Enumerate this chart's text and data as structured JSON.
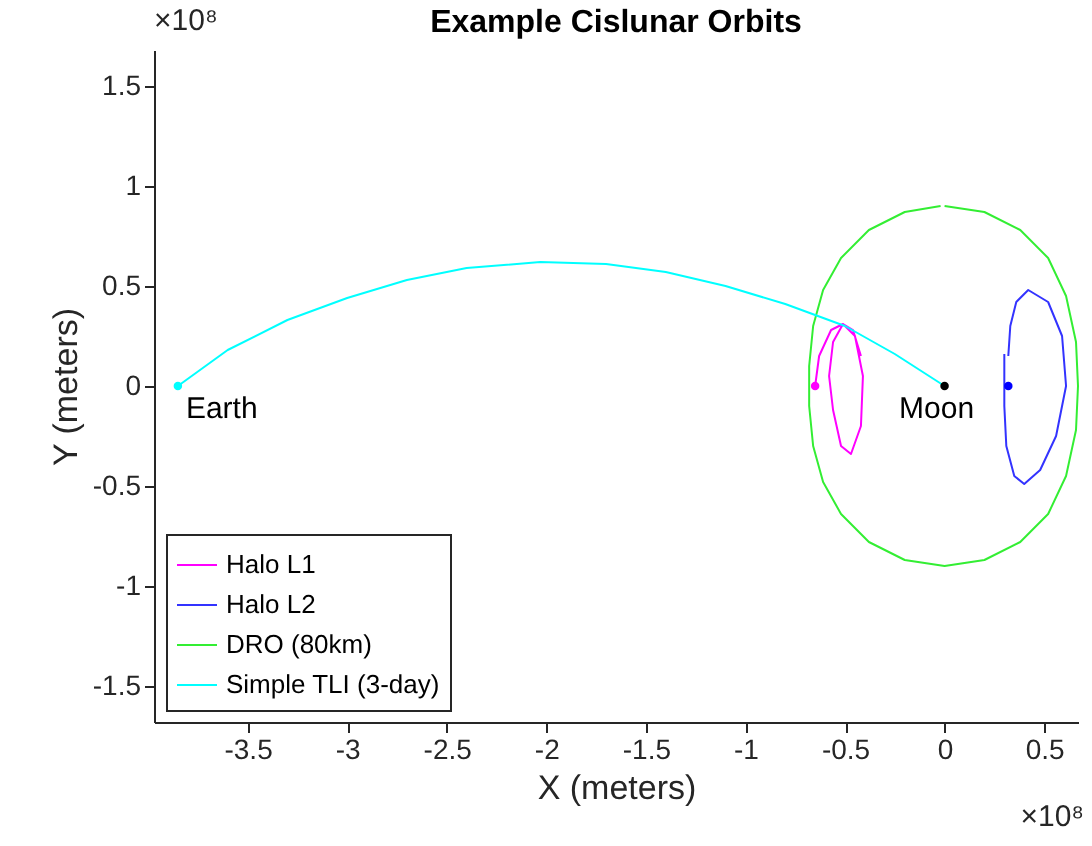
{
  "chart_data": {
    "type": "line",
    "title": "Example Cislunar Orbits",
    "xlabel": "X (meters)",
    "ylabel": "Y (meters)",
    "xlim": [
      -3.97,
      0.67
    ],
    "ylim": [
      -1.68,
      1.68
    ],
    "xticks": [
      -3.5,
      -3,
      -2.5,
      -2,
      -1.5,
      -1,
      -0.5,
      0,
      0.5
    ],
    "yticks": [
      -1.5,
      -1,
      -0.5,
      0,
      0.5,
      1,
      1.5
    ],
    "legend": "bottom left",
    "marker": "none",
    "annotations": [
      "×10⁸",
      "×10⁸",
      {
        "text": "Earth",
        "x": -3.85,
        "y": 0
      },
      {
        "text": "Moon",
        "x": 0,
        "y": 0
      }
    ],
    "series": [
      {
        "name": "Halo L1",
        "color": "#ff00ff",
        "x": [
          -0.65,
          -0.63,
          -0.57,
          -0.51,
          -0.45,
          -0.41,
          -0.42,
          -0.47,
          -0.52,
          -0.56,
          -0.58,
          -0.56,
          -0.51,
          -0.46,
          -0.42
        ],
        "values": [
          0,
          0.15,
          0.28,
          0.31,
          0.25,
          0.05,
          -0.2,
          -0.34,
          -0.3,
          -0.12,
          0.05,
          0.22,
          0.31,
          0.28,
          0.15
        ]
      },
      {
        "name": "Halo L2",
        "color": "#3333ff",
        "x": [
          0.3,
          0.3,
          0.31,
          0.35,
          0.4,
          0.48,
          0.56,
          0.61,
          0.59,
          0.52,
          0.42,
          0.36,
          0.33,
          0.32
        ],
        "values": [
          0.16,
          -0.1,
          -0.3,
          -0.45,
          -0.49,
          -0.42,
          -0.25,
          0,
          0.25,
          0.42,
          0.48,
          0.42,
          0.3,
          0.15
        ]
      },
      {
        "name": "DRO (80km)",
        "color": "#33ee33",
        "x": [
          0,
          0.2,
          0.38,
          0.52,
          0.61,
          0.66,
          0.67,
          0.66,
          0.61,
          0.52,
          0.38,
          0.2,
          0,
          -0.2,
          -0.38,
          -0.52,
          -0.61,
          -0.66,
          -0.68,
          -0.68,
          -0.66,
          -0.61,
          -0.52,
          -0.38,
          -0.2,
          -0.02
        ],
        "values": [
          0.9,
          0.87,
          0.78,
          0.64,
          0.45,
          0.22,
          0,
          -0.22,
          -0.45,
          -0.64,
          -0.78,
          -0.87,
          -0.9,
          -0.87,
          -0.78,
          -0.64,
          -0.48,
          -0.3,
          -0.1,
          0.1,
          0.3,
          0.48,
          0.64,
          0.78,
          0.87,
          0.9
        ]
      },
      {
        "name": "Simple TLI (3-day)",
        "color": "#00ffff",
        "x": [
          -3.85,
          -3.6,
          -3.3,
          -3,
          -2.7,
          -2.4,
          -2.03,
          -1.7,
          -1.4,
          -1.1,
          -0.8,
          -0.5,
          -0.25,
          0
        ],
        "values": [
          0,
          0.18,
          0.33,
          0.44,
          0.53,
          0.59,
          0.62,
          0.61,
          0.57,
          0.5,
          0.41,
          0.3,
          0.16,
          0
        ]
      },
      {
        "type": "scatter",
        "marker": "circle",
        "color": "#00ffff",
        "x": [
          -3.85
        ],
        "values": [
          0
        ]
      },
      {
        "type": "scatter",
        "marker": "circle",
        "color": "#ff00ff",
        "x": [
          -0.65
        ],
        "values": [
          0
        ]
      },
      {
        "type": "scatter",
        "marker": "circle",
        "color": "#0000ff",
        "x": [
          0.32
        ],
        "values": [
          0
        ]
      },
      {
        "type": "scatter",
        "marker": "circle",
        "color": "#000000",
        "x": [
          0
        ],
        "values": [
          0
        ]
      }
    ]
  }
}
